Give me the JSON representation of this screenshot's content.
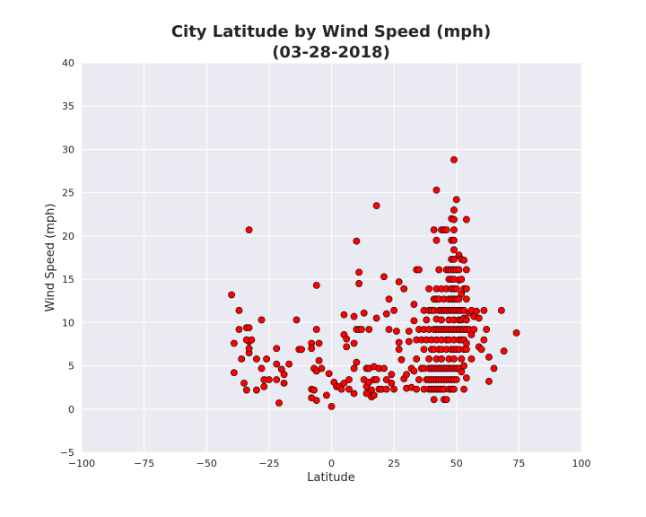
{
  "chart_data": {
    "type": "scatter",
    "title": "City Latitude by Wind Speed (mph)",
    "subtitle": "(03-28-2018)",
    "xlabel": "Latitude",
    "ylabel": "Wind Speed (mph)",
    "xlim": [
      -100,
      100
    ],
    "ylim": [
      -5,
      40
    ],
    "xticks": [
      -100,
      -75,
      -50,
      -25,
      0,
      25,
      50,
      75,
      100
    ],
    "yticks": [
      -5,
      0,
      5,
      10,
      15,
      20,
      25,
      30,
      35,
      40
    ],
    "x_tick_labels": [
      "−100",
      "−75",
      "−50",
      "−25",
      "0",
      "25",
      "50",
      "75",
      "100"
    ],
    "y_tick_labels": [
      "−5",
      "0",
      "5",
      "10",
      "15",
      "20",
      "25",
      "30",
      "35",
      "40"
    ],
    "grid": true,
    "marker_color": "#ff0000",
    "marker_edge": "#000000",
    "background": "#eaeaf2",
    "points": [
      [
        -40,
        13.2
      ],
      [
        -39,
        7.6
      ],
      [
        -39,
        4.2
      ],
      [
        -37,
        11.4
      ],
      [
        -37,
        9.2
      ],
      [
        -36,
        5.8
      ],
      [
        -34,
        9.4
      ],
      [
        -35,
        3.0
      ],
      [
        -34,
        2.2
      ],
      [
        -33,
        20.7
      ],
      [
        -33,
        9.4
      ],
      [
        -33,
        7.8
      ],
      [
        -33,
        6.5
      ],
      [
        -34,
        8.0
      ],
      [
        -33,
        7.0
      ],
      [
        -32,
        8.0
      ],
      [
        -30,
        2.2
      ],
      [
        -30,
        5.8
      ],
      [
        -28,
        10.3
      ],
      [
        -28,
        4.7
      ],
      [
        -27,
        3.4
      ],
      [
        -27,
        2.6
      ],
      [
        -26,
        5.8
      ],
      [
        -25,
        3.4
      ],
      [
        -22,
        7.0
      ],
      [
        -22,
        5.2
      ],
      [
        -22,
        3.4
      ],
      [
        -21,
        0.7
      ],
      [
        -20,
        4.6
      ],
      [
        -19,
        4.0
      ],
      [
        -19,
        3.0
      ],
      [
        -17,
        5.2
      ],
      [
        -14,
        10.3
      ],
      [
        -13,
        6.9
      ],
      [
        -12,
        6.9
      ],
      [
        -8,
        7.6
      ],
      [
        -8,
        7.0
      ],
      [
        -8,
        2.3
      ],
      [
        -7,
        4.7
      ],
      [
        -7,
        2.2
      ],
      [
        -6,
        9.2
      ],
      [
        -6,
        1.0
      ],
      [
        -6,
        14.3
      ],
      [
        -5,
        7.6
      ],
      [
        -5,
        5.6
      ],
      [
        -4,
        4.7
      ],
      [
        -6,
        4.4
      ],
      [
        -8,
        1.3
      ],
      [
        -2,
        1.6
      ],
      [
        -1,
        4.1
      ],
      [
        0,
        0.3
      ],
      [
        1,
        3.1
      ],
      [
        2,
        2.6
      ],
      [
        3,
        2.6
      ],
      [
        4,
        2.3
      ],
      [
        5,
        3.0
      ],
      [
        5,
        8.6
      ],
      [
        5,
        10.9
      ],
      [
        6,
        8.1
      ],
      [
        6,
        7.2
      ],
      [
        7,
        3.4
      ],
      [
        7,
        2.3
      ],
      [
        9,
        10.7
      ],
      [
        9,
        7.6
      ],
      [
        9,
        4.7
      ],
      [
        9,
        1.8
      ],
      [
        10,
        19.4
      ],
      [
        10,
        9.2
      ],
      [
        10,
        5.4
      ],
      [
        11,
        15.8
      ],
      [
        11,
        14.5
      ],
      [
        11,
        9.2
      ],
      [
        12,
        9.2
      ],
      [
        13,
        3.4
      ],
      [
        13,
        11.1
      ],
      [
        14,
        4.7
      ],
      [
        14,
        2.6
      ],
      [
        14,
        1.8
      ],
      [
        15,
        9.2
      ],
      [
        15,
        4.7
      ],
      [
        15,
        3.1
      ],
      [
        16,
        2.2
      ],
      [
        16,
        1.4
      ],
      [
        17,
        4.9
      ],
      [
        17,
        3.4
      ],
      [
        17,
        1.6
      ],
      [
        18,
        23.5
      ],
      [
        18,
        10.5
      ],
      [
        18,
        3.4
      ],
      [
        19,
        4.7
      ],
      [
        19,
        2.3
      ],
      [
        20,
        2.3
      ],
      [
        21,
        15.3
      ],
      [
        21,
        4.7
      ],
      [
        22,
        3.4
      ],
      [
        22,
        11.0
      ],
      [
        22,
        2.3
      ],
      [
        23,
        12.7
      ],
      [
        23,
        9.2
      ],
      [
        24,
        3.0
      ],
      [
        24,
        4.0
      ],
      [
        25,
        11.4
      ],
      [
        25,
        2.3
      ],
      [
        26,
        9.0
      ],
      [
        27,
        14.7
      ],
      [
        27,
        7.7
      ],
      [
        27,
        6.9
      ],
      [
        28,
        5.7
      ],
      [
        29,
        13.9
      ],
      [
        29,
        3.5
      ],
      [
        30,
        4.0
      ],
      [
        30,
        2.4
      ],
      [
        31,
        9.0
      ],
      [
        31,
        7.8
      ],
      [
        32,
        2.5
      ],
      [
        32,
        4.7
      ],
      [
        33,
        4.4
      ],
      [
        33,
        10.2
      ],
      [
        33,
        12.1
      ],
      [
        34,
        16.1
      ],
      [
        34,
        8.0
      ],
      [
        34,
        5.8
      ],
      [
        34,
        2.3
      ],
      [
        35,
        16.1
      ],
      [
        35,
        9.2
      ],
      [
        35,
        3.4
      ],
      [
        36,
        8.0
      ],
      [
        36,
        4.7
      ],
      [
        37,
        11.4
      ],
      [
        37,
        9.2
      ],
      [
        37,
        6.9
      ],
      [
        37,
        4.7
      ],
      [
        37,
        2.3
      ],
      [
        38,
        10.3
      ],
      [
        38,
        8.0
      ],
      [
        38,
        3.4
      ],
      [
        39,
        13.9
      ],
      [
        39,
        11.4
      ],
      [
        39,
        9.2
      ],
      [
        39,
        5.8
      ],
      [
        39,
        4.7
      ],
      [
        39,
        3.4
      ],
      [
        39,
        2.3
      ],
      [
        40,
        11.4
      ],
      [
        40,
        8.0
      ],
      [
        40,
        6.9
      ],
      [
        40,
        4.7
      ],
      [
        40,
        3.4
      ],
      [
        40,
        2.3
      ],
      [
        41,
        20.7
      ],
      [
        41,
        12.7
      ],
      [
        41,
        11.4
      ],
      [
        41,
        9.2
      ],
      [
        41,
        6.9
      ],
      [
        41,
        4.7
      ],
      [
        41,
        3.4
      ],
      [
        41,
        2.3
      ],
      [
        41,
        1.1
      ],
      [
        42,
        25.3
      ],
      [
        42,
        19.5
      ],
      [
        42,
        13.9
      ],
      [
        42,
        12.7
      ],
      [
        42,
        10.4
      ],
      [
        42,
        9.2
      ],
      [
        42,
        8.0
      ],
      [
        42,
        5.8
      ],
      [
        42,
        4.7
      ],
      [
        42,
        3.4
      ],
      [
        42,
        2.3
      ],
      [
        43,
        16.1
      ],
      [
        43,
        12.7
      ],
      [
        43,
        11.4
      ],
      [
        43,
        9.2
      ],
      [
        43,
        6.9
      ],
      [
        43,
        4.7
      ],
      [
        43,
        3.4
      ],
      [
        43,
        2.3
      ],
      [
        44,
        20.7
      ],
      [
        44,
        13.9
      ],
      [
        44,
        11.4
      ],
      [
        44,
        10.3
      ],
      [
        44,
        9.2
      ],
      [
        44,
        8.0
      ],
      [
        44,
        6.9
      ],
      [
        44,
        5.8
      ],
      [
        44,
        4.7
      ],
      [
        44,
        3.4
      ],
      [
        44,
        2.3
      ],
      [
        45,
        20.7
      ],
      [
        45,
        12.7
      ],
      [
        45,
        11.4
      ],
      [
        45,
        9.2
      ],
      [
        45,
        4.7
      ],
      [
        45,
        3.4
      ],
      [
        45,
        2.3
      ],
      [
        45,
        1.1
      ],
      [
        46,
        20.7
      ],
      [
        46,
        16.1
      ],
      [
        46,
        13.9
      ],
      [
        46,
        11.4
      ],
      [
        46,
        9.2
      ],
      [
        46,
        8.0
      ],
      [
        46,
        6.9
      ],
      [
        46,
        4.7
      ],
      [
        46,
        3.4
      ],
      [
        46,
        1.1
      ],
      [
        47,
        16.1
      ],
      [
        47,
        15.0
      ],
      [
        47,
        12.7
      ],
      [
        47,
        11.4
      ],
      [
        47,
        10.3
      ],
      [
        47,
        9.2
      ],
      [
        47,
        8.0
      ],
      [
        47,
        5.8
      ],
      [
        47,
        4.7
      ],
      [
        47,
        3.4
      ],
      [
        47,
        2.3
      ],
      [
        48,
        22.0
      ],
      [
        48,
        19.5
      ],
      [
        48,
        17.3
      ],
      [
        48,
        16.1
      ],
      [
        48,
        15.0
      ],
      [
        48,
        13.9
      ],
      [
        48,
        12.7
      ],
      [
        48,
        11.4
      ],
      [
        48,
        9.2
      ],
      [
        48,
        6.9
      ],
      [
        48,
        4.7
      ],
      [
        48,
        3.4
      ],
      [
        48,
        2.3
      ],
      [
        49,
        28.8
      ],
      [
        49,
        23.0
      ],
      [
        49,
        21.9
      ],
      [
        49,
        20.7
      ],
      [
        49,
        19.5
      ],
      [
        49,
        18.4
      ],
      [
        49,
        17.3
      ],
      [
        49,
        16.1
      ],
      [
        49,
        15.0
      ],
      [
        49,
        13.9
      ],
      [
        49,
        12.7
      ],
      [
        49,
        11.4
      ],
      [
        49,
        10.3
      ],
      [
        49,
        9.2
      ],
      [
        49,
        8.0
      ],
      [
        49,
        6.9
      ],
      [
        49,
        5.8
      ],
      [
        49,
        4.7
      ],
      [
        49,
        3.4
      ],
      [
        49,
        2.3
      ],
      [
        50,
        24.2
      ],
      [
        50,
        16.1
      ],
      [
        50,
        13.9
      ],
      [
        50,
        12.7
      ],
      [
        50,
        11.4
      ],
      [
        50,
        9.2
      ],
      [
        50,
        6.9
      ],
      [
        50,
        4.7
      ],
      [
        50,
        3.4
      ],
      [
        51,
        17.8
      ],
      [
        51,
        16.1
      ],
      [
        51,
        14.9
      ],
      [
        51,
        12.7
      ],
      [
        51,
        11.4
      ],
      [
        51,
        10.3
      ],
      [
        51,
        9.2
      ],
      [
        51,
        8.0
      ],
      [
        51,
        6.9
      ],
      [
        51,
        4.7
      ],
      [
        52,
        17.3
      ],
      [
        52,
        15.0
      ],
      [
        52,
        13.3
      ],
      [
        52,
        11.4
      ],
      [
        52,
        10.3
      ],
      [
        52,
        9.2
      ],
      [
        52,
        8.0
      ],
      [
        52,
        5.8
      ],
      [
        52,
        4.3
      ],
      [
        53,
        17.2
      ],
      [
        53,
        13.9
      ],
      [
        53,
        11.4
      ],
      [
        53,
        10.5
      ],
      [
        53,
        9.2
      ],
      [
        53,
        8.0
      ],
      [
        53,
        6.9
      ],
      [
        53,
        5.0
      ],
      [
        53,
        2.3
      ],
      [
        54,
        21.9
      ],
      [
        54,
        16.1
      ],
      [
        54,
        13.9
      ],
      [
        54,
        12.7
      ],
      [
        54,
        10.3
      ],
      [
        54,
        9.2
      ],
      [
        54,
        7.6
      ],
      [
        54,
        6.9
      ],
      [
        54,
        3.6
      ],
      [
        55,
        11.1
      ],
      [
        55,
        9.2
      ],
      [
        56,
        11.4
      ],
      [
        56,
        8.6
      ],
      [
        56,
        5.8
      ],
      [
        57,
        10.7
      ],
      [
        57,
        9.2
      ],
      [
        58,
        11.3
      ],
      [
        59,
        10.5
      ],
      [
        59,
        7.2
      ],
      [
        60,
        6.9
      ],
      [
        61,
        11.4
      ],
      [
        61,
        8.0
      ],
      [
        62,
        9.2
      ],
      [
        63,
        3.2
      ],
      [
        63,
        6.0
      ],
      [
        65,
        4.7
      ],
      [
        68,
        11.4
      ],
      [
        69,
        6.7
      ],
      [
        74,
        8.8
      ]
    ]
  }
}
